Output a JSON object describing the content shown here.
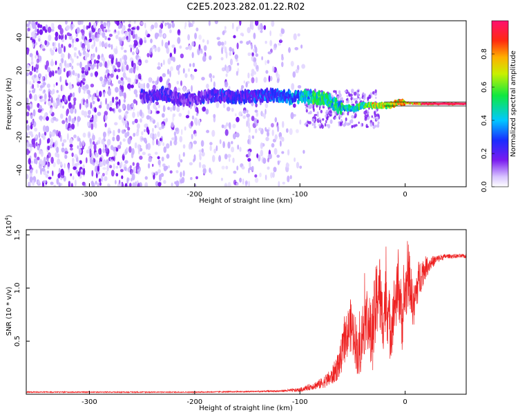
{
  "title": "C2E5.2023.282.01.22.R02",
  "colors": {
    "snr_line": "#ee2222",
    "axis": "#000000",
    "spectrogram_speckle": "#7a1cf0",
    "spectrogram_light": "#d9c6ff"
  },
  "chart_data": [
    {
      "type": "heatmap",
      "title": "C2E5.2023.282.01.22.R02",
      "xlabel": "Height of straight line (km)",
      "ylabel": "Frequency (Hz)",
      "xlim": [
        -360,
        58
      ],
      "ylim": [
        -50,
        50
      ],
      "x_ticks": [
        -300,
        -200,
        -100,
        0
      ],
      "x_tick_labels": [
        "-300",
        "-200",
        "-100",
        "0"
      ],
      "y_ticks": [
        -40,
        -20,
        0,
        20,
        40
      ],
      "y_tick_labels": [
        "-40",
        "-20",
        "0",
        "20",
        "40"
      ],
      "colorbar": {
        "label": "Normalized spectral amplitude",
        "range": [
          0,
          1
        ],
        "ticks": [
          0.0,
          0.2,
          0.4,
          0.6,
          0.8
        ],
        "tick_labels": [
          "0.0",
          "0.2",
          "0.4",
          "0.6",
          "0.8"
        ],
        "colormap": "rainbow (white-violet-blue-cyan-green-yellow-red-magenta)"
      },
      "ridge": {
        "description": "Doppler line near 0 Hz, noisy and broad at low heights, sharp and strong above ~-50 km",
        "points": [
          {
            "x": -250,
            "y": 4,
            "amp": 0.25
          },
          {
            "x": -230,
            "y": 6,
            "amp": 0.3
          },
          {
            "x": -210,
            "y": 2,
            "amp": 0.22
          },
          {
            "x": -185,
            "y": 5,
            "amp": 0.3
          },
          {
            "x": -160,
            "y": 4,
            "amp": 0.32
          },
          {
            "x": -130,
            "y": 5,
            "amp": 0.35
          },
          {
            "x": -110,
            "y": 4,
            "amp": 0.4
          },
          {
            "x": -90,
            "y": 4,
            "amp": 0.55
          },
          {
            "x": -75,
            "y": 3,
            "amp": 0.6
          },
          {
            "x": -62,
            "y": -2,
            "amp": 0.55
          },
          {
            "x": -50,
            "y": -3,
            "amp": 0.55
          },
          {
            "x": -40,
            "y": -1,
            "amp": 0.65
          },
          {
            "x": -30,
            "y": -1,
            "amp": 0.8
          },
          {
            "x": -15,
            "y": -1,
            "amp": 0.8
          },
          {
            "x": -5,
            "y": 1,
            "amp": 0.85
          },
          {
            "x": 10,
            "y": 0,
            "amp": 0.9
          },
          {
            "x": 30,
            "y": 0,
            "amp": 0.95
          },
          {
            "x": 58,
            "y": 0,
            "amp": 0.95
          }
        ]
      }
    },
    {
      "type": "line",
      "xlabel": "Height of straight line (km)",
      "ylabel": "SNR (10 * v/v)",
      "y_multiplier": "(x10",
      "y_multiplier_exp": "4",
      "y_multiplier_close": ")",
      "xlim": [
        -360,
        58
      ],
      "ylim": [
        0,
        1.55
      ],
      "x_ticks": [
        -300,
        -200,
        -100,
        0
      ],
      "x_tick_labels": [
        "-300",
        "-200",
        "-100",
        "0"
      ],
      "y_ticks": [
        0.5,
        1.0,
        1.5
      ],
      "y_tick_labels": [
        "0.5",
        "1.0",
        "1.5"
      ],
      "series": [
        {
          "color": "#ee2222",
          "x": [
            -360,
            -300,
            -200,
            -150,
            -120,
            -100,
            -90,
            -80,
            -70,
            -62,
            -58,
            -52,
            -48,
            -44,
            -40,
            -36,
            -32,
            -28,
            -25,
            -22,
            -18,
            -14,
            -10,
            -6,
            -3,
            0,
            4,
            8,
            12,
            16,
            20,
            25,
            30,
            35,
            40,
            45,
            50,
            58
          ],
          "values": [
            0.02,
            0.02,
            0.02,
            0.025,
            0.03,
            0.04,
            0.07,
            0.1,
            0.16,
            0.3,
            0.48,
            0.65,
            0.55,
            0.35,
            0.62,
            0.75,
            0.5,
            0.8,
            1.05,
            0.7,
            0.9,
            0.6,
            0.85,
            1.0,
            0.7,
            0.95,
            1.1,
            0.8,
            1.05,
            1.15,
            1.2,
            1.24,
            1.27,
            1.29,
            1.3,
            1.3,
            1.3,
            1.3
          ],
          "noise_amp": [
            0.005,
            0.005,
            0.005,
            0.006,
            0.008,
            0.02,
            0.03,
            0.05,
            0.08,
            0.15,
            0.2,
            0.25,
            0.25,
            0.25,
            0.3,
            0.3,
            0.35,
            0.4,
            0.4,
            0.35,
            0.35,
            0.3,
            0.3,
            0.3,
            0.3,
            0.3,
            0.25,
            0.22,
            0.2,
            0.15,
            0.1,
            0.06,
            0.04,
            0.03,
            0.02,
            0.02,
            0.02,
            0.02
          ]
        }
      ]
    }
  ]
}
